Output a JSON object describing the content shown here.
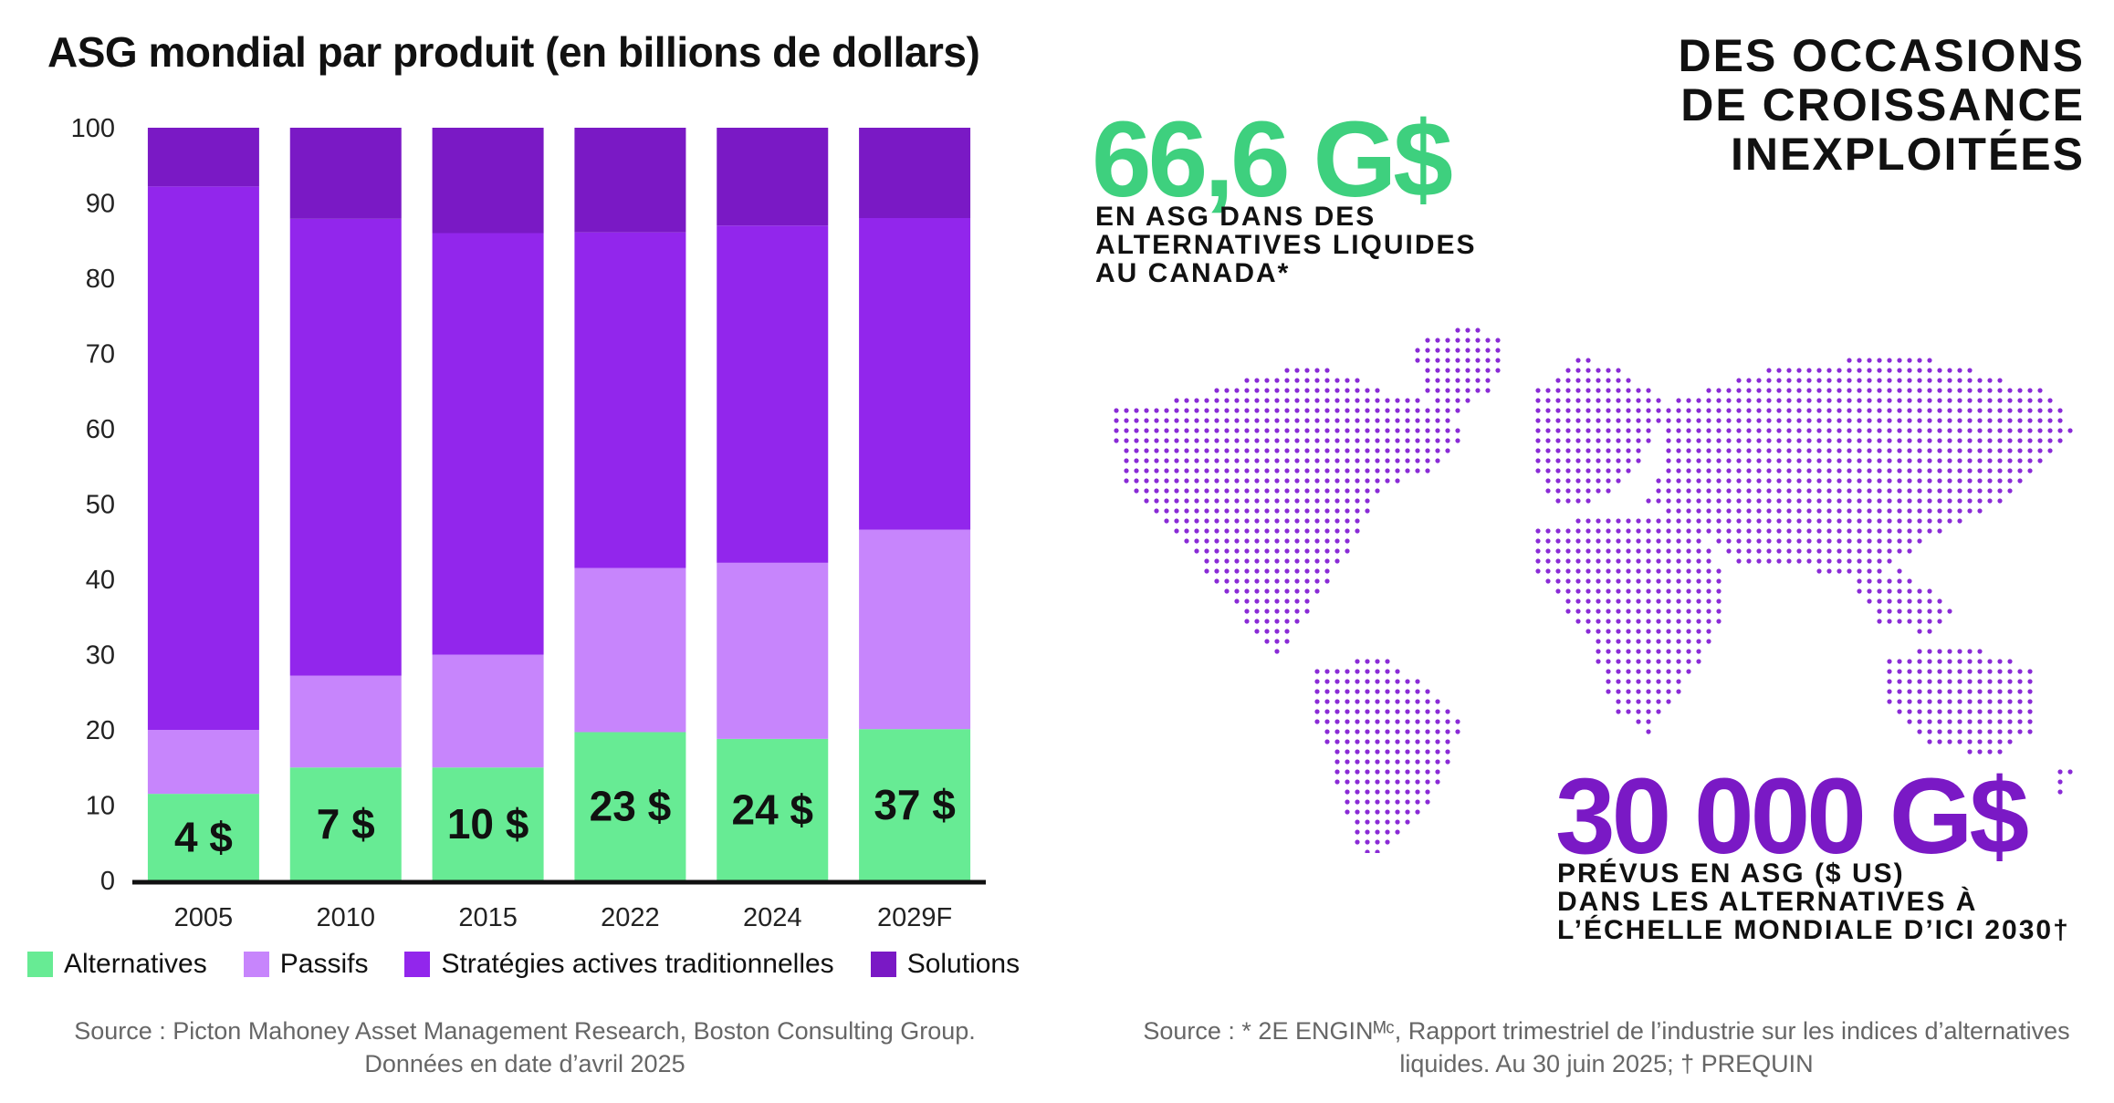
{
  "chart_data": {
    "type": "bar",
    "stacked": true,
    "title": "ASG mondial par produit (en billions de dollars)",
    "categories": [
      "2005",
      "2010",
      "2015",
      "2022",
      "2024",
      "2029F"
    ],
    "ylim": [
      0,
      100
    ],
    "yticks": [
      0,
      10,
      20,
      30,
      40,
      50,
      60,
      70,
      80,
      90,
      100
    ],
    "series": [
      {
        "name": "Alternatives",
        "color": "#67eb94",
        "values": [
          11.5,
          15,
          15,
          19.7,
          18.8,
          20.1
        ]
      },
      {
        "name": "Passifs",
        "color": "#c785fc",
        "values": [
          8.5,
          12.2,
          15,
          21.8,
          23.4,
          26.5
        ]
      },
      {
        "name": "Stratégies actives traditionnelles",
        "color": "#9226ec",
        "values": [
          72.2,
          60.7,
          56,
          44.6,
          44.8,
          41.4
        ]
      },
      {
        "name": "Solutions",
        "color": "#7a19c5",
        "values": [
          7.8,
          12.1,
          14,
          13.9,
          13,
          12
        ]
      }
    ],
    "bar_labels": [
      "4 $",
      "7 $",
      "10 $",
      "23 $",
      "24 $",
      "37 $"
    ],
    "legend_position": "bottom"
  },
  "headline": {
    "line1": "DES OCCASIONS",
    "line2": "DE CROISSANCE",
    "line3": "INEXPLOITÉES"
  },
  "stat1": {
    "value": "66,6 G$",
    "description": "EN ASG DANS DES\nALTERNATIVES LIQUIDES\nAU CANADA*",
    "color": "#3ed07e"
  },
  "stat2": {
    "value": "30 000 G$",
    "description": "PRÉVUS EN ASG ($ US)\nDANS LES ALTERNATIVES À\nL’ÉCHELLE MONDIALE D’ICI 2030†",
    "color": "#7a19c5"
  },
  "map": {
    "dot_color": "#8a2bd6"
  },
  "sources": {
    "left_line1": "Source : Picton Mahoney Asset Management Research, Boston Consulting Group.",
    "left_line2": "Données en date d’avril 2025",
    "right_line1": "Source : * 2E ENGINᴹᶜ, Rapport trimestriel de l’industrie sur les indices d’alternatives",
    "right_line2": "liquides. Au 30 juin 2025; † PREQUIN"
  }
}
